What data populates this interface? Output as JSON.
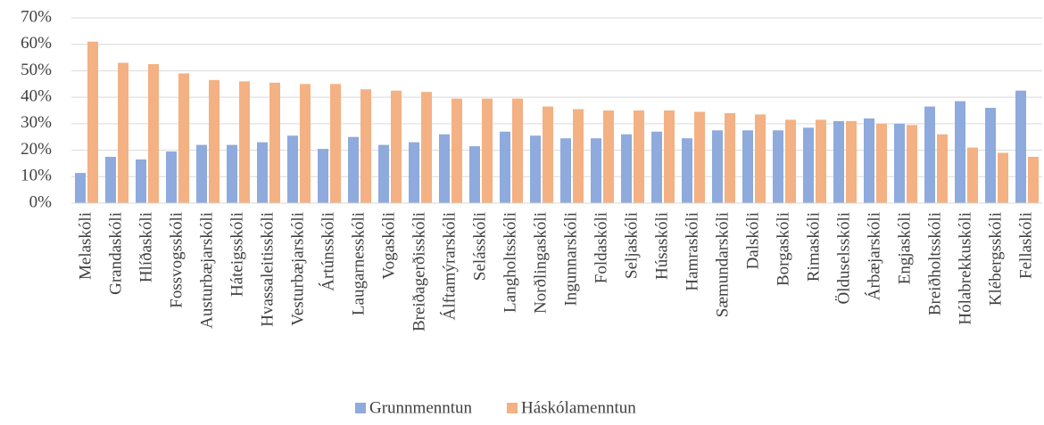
{
  "chart_data": {
    "type": "bar",
    "categories": [
      "Melaskóli",
      "Grandaskóli",
      "Hlíðaskóli",
      "Fossvogsskóli",
      "Austurbæjarskóli",
      "Háteigsskóli",
      "Hvassaleitisskóli",
      "Vesturbæjarskóli",
      "Ártúnsskóli",
      "Laugarnesskóli",
      "Vogaskóli",
      "Breiðagerðisskóli",
      "Álftamýrarskóli",
      "Selásskóli",
      "Langholtsskóli",
      "Norðlingaskóli",
      "Ingunnarskóli",
      "Foldaskóli",
      "Seljaskóli",
      "Húsaskóli",
      "Hamraskóli",
      "Sæmundarskóli",
      "Dalskóli",
      "Borgaskóli",
      "Rimaskóli",
      "Ölduselsskóli",
      "Árbæjarskóli",
      "Engjaskóli",
      "Breiðholtsskóli",
      "Hólabrekkuskóli",
      "Klébergsskóli",
      "Fellaskóli"
    ],
    "series": [
      {
        "name": "Grunnmenntun",
        "color": "#8faadc",
        "values": [
          11.4,
          17.5,
          16.5,
          19.5,
          22,
          22,
          23,
          25.5,
          20.5,
          25,
          22,
          23,
          26,
          21.5,
          27,
          25.5,
          24.5,
          24.5,
          26,
          27,
          24.5,
          27.5,
          27.5,
          27.5,
          28.5,
          31,
          32,
          30,
          36.5,
          38.5,
          36,
          42.5
        ]
      },
      {
        "name": "Háskólamenntun",
        "color": "#f4b183",
        "values": [
          61,
          53,
          52.5,
          49,
          46.5,
          46,
          45.5,
          45,
          45,
          43,
          42.5,
          42,
          39.5,
          39.5,
          39.5,
          36.5,
          35.5,
          35,
          35,
          35,
          34.5,
          34,
          33.5,
          31.5,
          31.5,
          31,
          30,
          29.5,
          26,
          21,
          19,
          17.5
        ]
      }
    ],
    "ylim": [
      0,
      70
    ],
    "yticks": [
      {
        "value": 0,
        "label": "0%"
      },
      {
        "value": 10,
        "label": "10%"
      },
      {
        "value": 20,
        "label": "20%"
      },
      {
        "value": 30,
        "label": "30%"
      },
      {
        "value": 40,
        "label": "40%"
      },
      {
        "value": 50,
        "label": "50%"
      },
      {
        "value": 60,
        "label": "60%"
      },
      {
        "value": 70,
        "label": "70%"
      }
    ],
    "grid": true,
    "legend": "bottom"
  }
}
